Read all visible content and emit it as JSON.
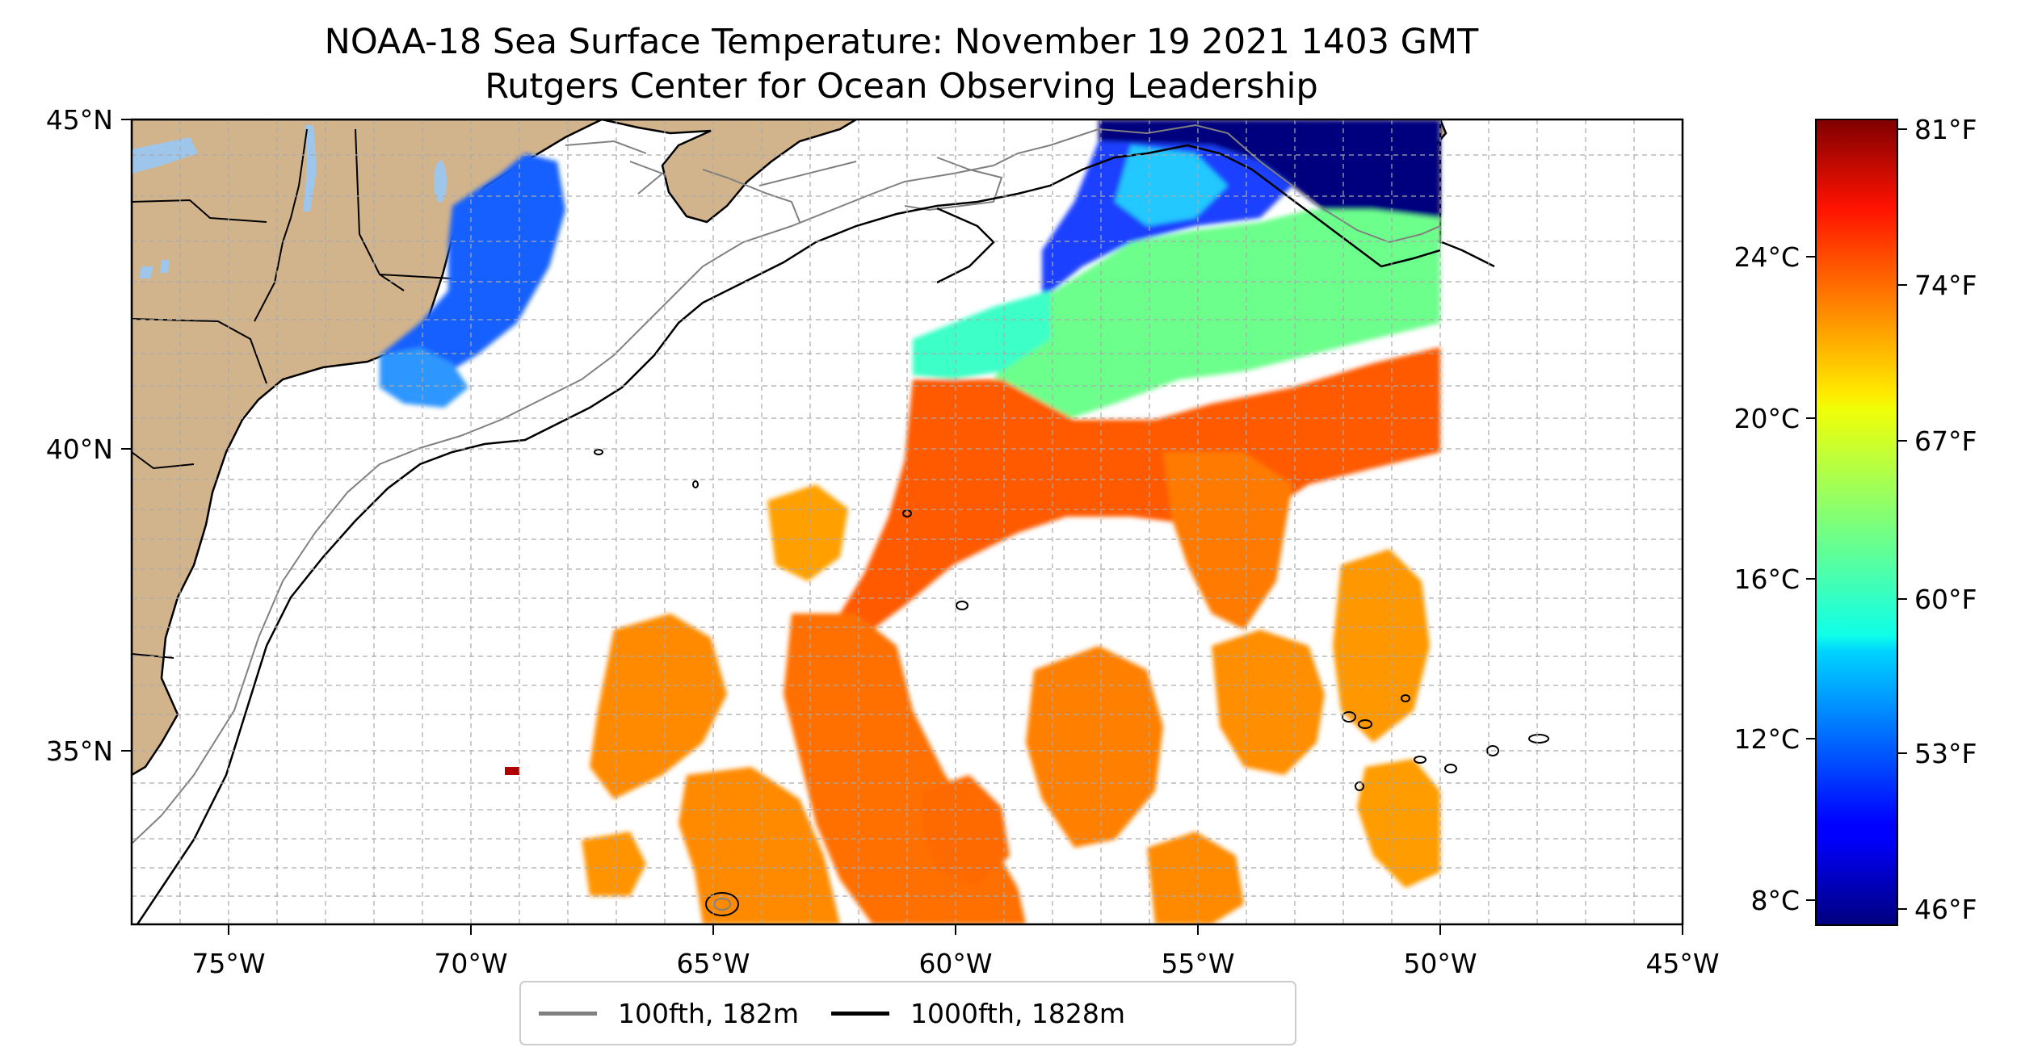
{
  "title": {
    "line1": "NOAA-18 Sea Surface Temperature: November 19 2021 1403 GMT",
    "line2": "Rutgers Center for Ocean Observing Leadership"
  },
  "map": {
    "lon_range": [
      -77,
      -45
    ],
    "lat_range": [
      32.2,
      45
    ],
    "lon_ticks": [
      {
        "value": -75,
        "label": "75°W"
      },
      {
        "value": -70,
        "label": "70°W"
      },
      {
        "value": -65,
        "label": "65°W"
      },
      {
        "value": -60,
        "label": "60°W"
      },
      {
        "value": -55,
        "label": "55°W"
      },
      {
        "value": -50,
        "label": "50°W"
      },
      {
        "value": -45,
        "label": "45°W"
      }
    ],
    "lat_ticks": [
      {
        "value": 45,
        "label": "45°N"
      },
      {
        "value": 40,
        "label": "40°N"
      },
      {
        "value": 35,
        "label": "35°N"
      }
    ],
    "gridlines": "dashed",
    "colors": {
      "land": "#d2b48c",
      "lakes": "#9ec6ea",
      "contour_100fth": "#808080",
      "contour_1000fth": "#000000"
    }
  },
  "colorbar": {
    "colormap": "jet",
    "range_f": [
      45.5,
      82
    ],
    "celsius_ticks": [
      {
        "value": 8,
        "label": "8°C"
      },
      {
        "value": 12,
        "label": "12°C"
      },
      {
        "value": 16,
        "label": "16°C"
      },
      {
        "value": 20,
        "label": "20°C"
      },
      {
        "value": 24,
        "label": "24°C"
      }
    ],
    "fahrenheit_ticks": [
      {
        "value": 46,
        "label": "46°F"
      },
      {
        "value": 53,
        "label": "53°F"
      },
      {
        "value": 60,
        "label": "60°F"
      },
      {
        "value": 67,
        "label": "67°F"
      },
      {
        "value": 74,
        "label": "74°F"
      },
      {
        "value": 81,
        "label": "81°F"
      }
    ]
  },
  "legend": {
    "items": [
      {
        "label": "100fth, 182m",
        "color": "#808080"
      },
      {
        "label": "1000fth, 1828m",
        "color": "#000000"
      }
    ]
  }
}
